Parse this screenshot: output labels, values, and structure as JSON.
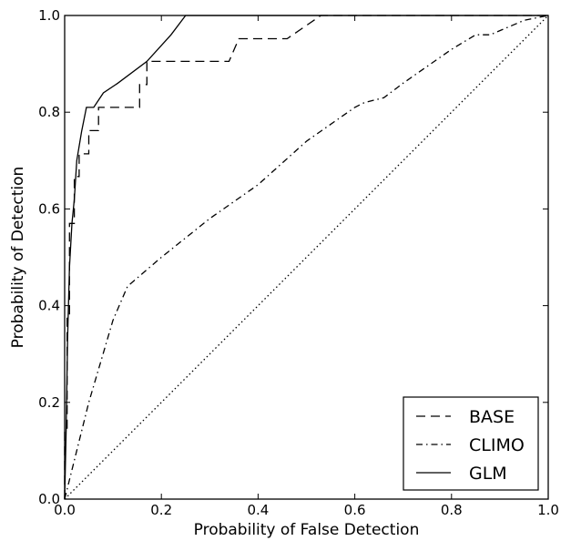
{
  "chart_data": {
    "type": "line",
    "title": "",
    "xlabel": "Probability of False Detection",
    "ylabel": "Probability of Detection",
    "xlim": [
      0.0,
      1.0
    ],
    "ylim": [
      0.0,
      1.0
    ],
    "xticks": [
      "0.0",
      "0.2",
      "0.4",
      "0.6",
      "0.8",
      "1.0"
    ],
    "yticks": [
      "0.0",
      "0.2",
      "0.4",
      "0.6",
      "0.8",
      "1.0"
    ],
    "grid": false,
    "legend_position": "bottom-right",
    "series": [
      {
        "name": "BASE",
        "style": "dashed",
        "color": "#000000",
        "points": [
          [
            0.0,
            0.0
          ],
          [
            0.0,
            0.14
          ],
          [
            0.005,
            0.14
          ],
          [
            0.005,
            0.38
          ],
          [
            0.01,
            0.38
          ],
          [
            0.01,
            0.57
          ],
          [
            0.02,
            0.57
          ],
          [
            0.02,
            0.667
          ],
          [
            0.03,
            0.667
          ],
          [
            0.03,
            0.714
          ],
          [
            0.05,
            0.714
          ],
          [
            0.05,
            0.762
          ],
          [
            0.07,
            0.762
          ],
          [
            0.07,
            0.81
          ],
          [
            0.155,
            0.81
          ],
          [
            0.155,
            0.857
          ],
          [
            0.17,
            0.857
          ],
          [
            0.17,
            0.905
          ],
          [
            0.34,
            0.905
          ],
          [
            0.36,
            0.952
          ],
          [
            0.46,
            0.952
          ],
          [
            0.53,
            1.0
          ],
          [
            1.0,
            1.0
          ]
        ]
      },
      {
        "name": "CLIMO",
        "style": "dashdot",
        "color": "#000000",
        "points": [
          [
            0.0,
            0.0
          ],
          [
            0.05,
            0.2
          ],
          [
            0.1,
            0.37
          ],
          [
            0.13,
            0.44
          ],
          [
            0.2,
            0.5
          ],
          [
            0.3,
            0.58
          ],
          [
            0.4,
            0.65
          ],
          [
            0.5,
            0.74
          ],
          [
            0.6,
            0.81
          ],
          [
            0.62,
            0.82
          ],
          [
            0.66,
            0.83
          ],
          [
            0.7,
            0.86
          ],
          [
            0.8,
            0.93
          ],
          [
            0.85,
            0.96
          ],
          [
            0.88,
            0.96
          ],
          [
            0.95,
            0.99
          ],
          [
            1.0,
            1.0
          ]
        ]
      },
      {
        "name": "GLM",
        "style": "solid",
        "color": "#000000",
        "points": [
          [
            0.0,
            0.0
          ],
          [
            0.003,
            0.14
          ],
          [
            0.006,
            0.33
          ],
          [
            0.01,
            0.48
          ],
          [
            0.015,
            0.57
          ],
          [
            0.02,
            0.62
          ],
          [
            0.025,
            0.7
          ],
          [
            0.035,
            0.76
          ],
          [
            0.045,
            0.81
          ],
          [
            0.06,
            0.81
          ],
          [
            0.08,
            0.84
          ],
          [
            0.11,
            0.86
          ],
          [
            0.17,
            0.905
          ],
          [
            0.22,
            0.96
          ],
          [
            0.25,
            1.0
          ],
          [
            1.0,
            1.0
          ]
        ]
      },
      {
        "name": "",
        "style": "dotted",
        "color": "#000000",
        "points": [
          [
            0.0,
            0.0
          ],
          [
            1.0,
            1.0
          ]
        ]
      }
    ]
  }
}
